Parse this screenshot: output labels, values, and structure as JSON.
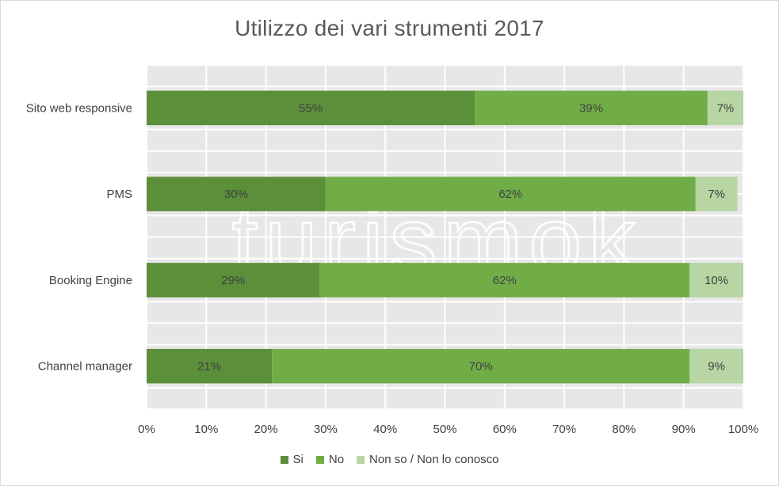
{
  "chart_data": {
    "type": "bar",
    "orientation": "horizontal",
    "stacked": "100%",
    "title": "Utilizzo dei vari strumenti 2017",
    "categories": [
      "Sito web responsive",
      "PMS",
      "Booking Engine",
      "Channel manager"
    ],
    "series": [
      {
        "name": "Si",
        "color": "#5b8f3a",
        "values": [
          55,
          30,
          29,
          21
        ],
        "labels": [
          "55%",
          "30%",
          "29%",
          "21%"
        ]
      },
      {
        "name": "No",
        "color": "#70ad47",
        "values": [
          39,
          62,
          62,
          70
        ],
        "labels": [
          "39%",
          "62%",
          "62%",
          "70%"
        ]
      },
      {
        "name": "Non so / Non lo conosco",
        "color": "#b7d6a3",
        "values": [
          7,
          7,
          10,
          9
        ],
        "labels": [
          "7%",
          "7%",
          "10%",
          "9%"
        ]
      }
    ],
    "x_ticks": [
      "0%",
      "10%",
      "20%",
      "30%",
      "40%",
      "50%",
      "60%",
      "70%",
      "80%",
      "90%",
      "100%"
    ],
    "xlim": [
      0,
      100
    ],
    "grid": true,
    "legend_position": "bottom",
    "watermark": "turismok"
  }
}
